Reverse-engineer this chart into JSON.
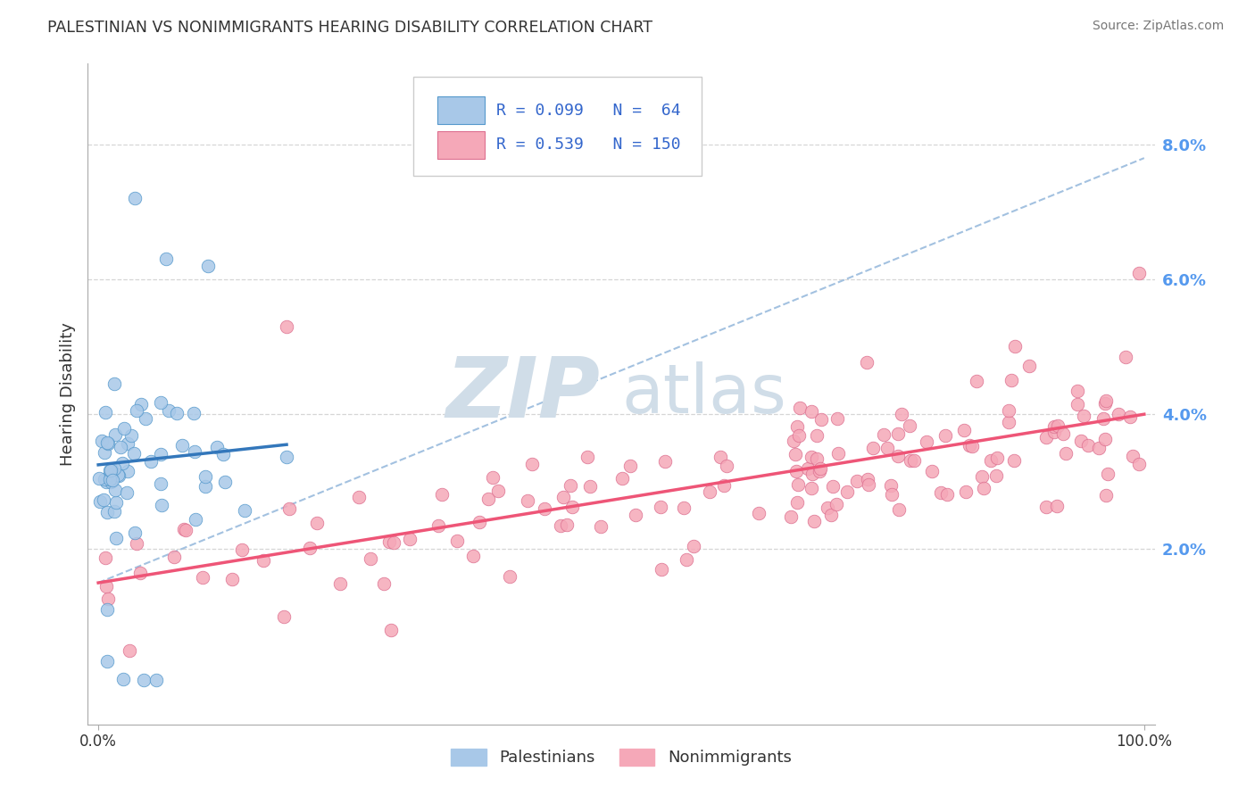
{
  "title": "PALESTINIAN VS NONIMMIGRANTS HEARING DISABILITY CORRELATION CHART",
  "source": "Source: ZipAtlas.com",
  "ylabel": "Hearing Disability",
  "legend_label_1": "Palestinians",
  "legend_label_2": "Nonimmigrants",
  "R1": 0.099,
  "N1": 64,
  "R2": 0.539,
  "N2": 150,
  "color_palestinians": "#a8c8e8",
  "color_nonimmigrants": "#f5a8b8",
  "edge_palestinians": "#5599cc",
  "edge_nonimmigrants": "#dd7090",
  "line_color_palestinians": "#3377bb",
  "line_color_nonimmigrants": "#ee5577",
  "dashed_line_color": "#99bbdd",
  "watermark_color": "#d0dde8",
  "ytick_color": "#5599ee",
  "background_color": "#ffffff",
  "yticks": [
    2.0,
    4.0,
    6.0,
    8.0
  ],
  "grid_color": "#cccccc",
  "title_color": "#333333",
  "source_color": "#777777",
  "legend_text_color": "#3366cc"
}
